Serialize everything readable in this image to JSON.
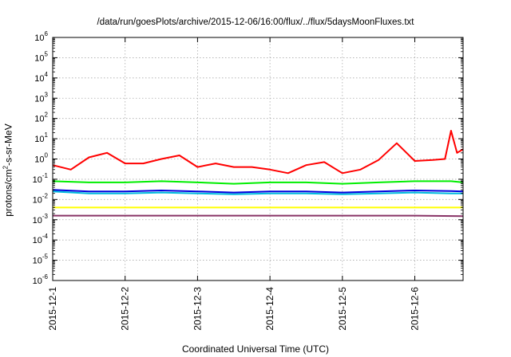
{
  "chart_data": {
    "type": "line",
    "title": "/data/run/goesPlots/archive/2015-12-06/16:00/flux/../flux/5daysMoonFluxes.txt",
    "xlabel": "Coordinated Universal Time (UTC)",
    "ylabel": "protons/cm2-s-sr-MeV",
    "ylabel_parts": [
      "protons/cm",
      "2",
      "-s-sr-MeV"
    ],
    "yscale": "log",
    "ylim": [
      1e-06,
      1000000.0
    ],
    "ytick_labels": [
      {
        "base": "10",
        "exp": "6"
      },
      {
        "base": "10",
        "exp": "5"
      },
      {
        "base": "10",
        "exp": "4"
      },
      {
        "base": "10",
        "exp": "3"
      },
      {
        "base": "10",
        "exp": "2"
      },
      {
        "base": "10",
        "exp": "1"
      },
      {
        "base": "10",
        "exp": "0"
      },
      {
        "base": "10",
        "exp": "-1"
      },
      {
        "base": "10",
        "exp": "-2"
      },
      {
        "base": "10",
        "exp": "-3"
      },
      {
        "base": "10",
        "exp": "-4"
      },
      {
        "base": "10",
        "exp": "-5"
      },
      {
        "base": "10",
        "exp": "-6"
      }
    ],
    "xlim": [
      "2015-12-01",
      "2015-12-06 16:00"
    ],
    "xtick_labels": [
      "2015-12-1",
      "2015-12-2",
      "2015-12-3",
      "2015-12-4",
      "2015-12-5",
      "2015-12-6"
    ],
    "grid": true,
    "series": [
      {
        "color": "#ff0000",
        "x": [
          "2015-12-01 00:00",
          "2015-12-01 06:00",
          "2015-12-01 12:00",
          "2015-12-01 18:00",
          "2015-12-02 00:00",
          "2015-12-02 06:00",
          "2015-12-02 12:00",
          "2015-12-02 18:00",
          "2015-12-03 00:00",
          "2015-12-03 06:00",
          "2015-12-03 12:00",
          "2015-12-03 18:00",
          "2015-12-04 00:00",
          "2015-12-04 06:00",
          "2015-12-04 12:00",
          "2015-12-04 18:00",
          "2015-12-05 00:00",
          "2015-12-05 06:00",
          "2015-12-05 12:00",
          "2015-12-05 18:00",
          "2015-12-06 00:00",
          "2015-12-06 06:00",
          "2015-12-06 10:00",
          "2015-12-06 12:00",
          "2015-12-06 14:00",
          "2015-12-06 16:00"
        ],
        "values": [
          0.5,
          0.3,
          1.2,
          2.0,
          0.6,
          0.6,
          1.0,
          1.5,
          0.4,
          0.6,
          0.4,
          0.4,
          0.3,
          0.2,
          0.5,
          0.7,
          0.2,
          0.3,
          0.9,
          6.0,
          0.8,
          0.9,
          1.0,
          25,
          2.0,
          3.0
        ]
      },
      {
        "color": "#00ee00",
        "x": [
          "2015-12-01 00:00",
          "2015-12-01 12:00",
          "2015-12-02 00:00",
          "2015-12-02 12:00",
          "2015-12-03 00:00",
          "2015-12-03 12:00",
          "2015-12-04 00:00",
          "2015-12-04 12:00",
          "2015-12-05 00:00",
          "2015-12-05 12:00",
          "2015-12-06 00:00",
          "2015-12-06 12:00",
          "2015-12-06 16:00"
        ],
        "values": [
          0.08,
          0.07,
          0.07,
          0.08,
          0.07,
          0.06,
          0.07,
          0.07,
          0.06,
          0.07,
          0.08,
          0.08,
          0.07
        ]
      },
      {
        "color": "#00bbdd",
        "x": [
          "2015-12-01 00:00",
          "2015-12-01 12:00",
          "2015-12-02 00:00",
          "2015-12-02 12:00",
          "2015-12-03 00:00",
          "2015-12-03 12:00",
          "2015-12-04 00:00",
          "2015-12-04 12:00",
          "2015-12-05 00:00",
          "2015-12-05 12:00",
          "2015-12-06 00:00",
          "2015-12-06 12:00",
          "2015-12-06 16:00"
        ],
        "values": [
          0.025,
          0.02,
          0.02,
          0.022,
          0.02,
          0.018,
          0.02,
          0.02,
          0.018,
          0.02,
          0.022,
          0.02,
          0.02
        ]
      },
      {
        "color": "#0000dd",
        "x": [
          "2015-12-01 00:00",
          "2015-12-01 12:00",
          "2015-12-02 00:00",
          "2015-12-02 12:00",
          "2015-12-03 00:00",
          "2015-12-03 12:00",
          "2015-12-04 00:00",
          "2015-12-04 12:00",
          "2015-12-05 00:00",
          "2015-12-05 12:00",
          "2015-12-06 00:00",
          "2015-12-06 12:00",
          "2015-12-06 16:00"
        ],
        "values": [
          0.03,
          0.025,
          0.025,
          0.028,
          0.025,
          0.022,
          0.025,
          0.025,
          0.022,
          0.025,
          0.028,
          0.026,
          0.025
        ]
      },
      {
        "color": "#ffff00",
        "x": [
          "2015-12-01 00:00",
          "2015-12-02 00:00",
          "2015-12-03 00:00",
          "2015-12-04 00:00",
          "2015-12-05 00:00",
          "2015-12-06 00:00",
          "2015-12-06 16:00"
        ],
        "values": [
          0.004,
          0.004,
          0.004,
          0.004,
          0.004,
          0.004,
          0.004
        ]
      },
      {
        "color": "#883366",
        "x": [
          "2015-12-01 00:00",
          "2015-12-02 00:00",
          "2015-12-03 00:00",
          "2015-12-04 00:00",
          "2015-12-05 00:00",
          "2015-12-06 00:00",
          "2015-12-06 16:00"
        ],
        "values": [
          0.0016,
          0.0016,
          0.0016,
          0.0016,
          0.0016,
          0.0016,
          0.0015
        ]
      }
    ]
  }
}
